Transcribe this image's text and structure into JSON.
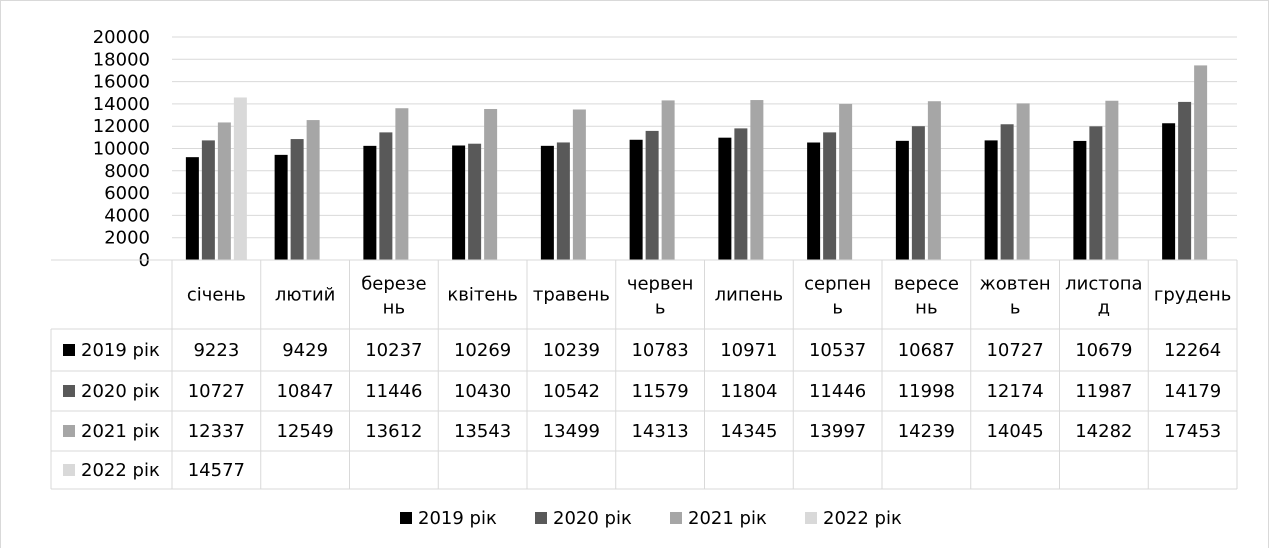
{
  "chart_data": {
    "type": "bar",
    "title": "",
    "xlabel": "",
    "ylabel": "",
    "ylim": [
      0,
      20000
    ],
    "yticks": [
      0,
      2000,
      4000,
      6000,
      8000,
      10000,
      12000,
      14000,
      16000,
      18000,
      20000
    ],
    "grid": true,
    "legend_position": "bottom",
    "categories": [
      [
        "січень"
      ],
      [
        "лютий"
      ],
      [
        "березе",
        "нь"
      ],
      [
        "квітень"
      ],
      [
        "травень"
      ],
      [
        "червен",
        "ь"
      ],
      [
        "липень"
      ],
      [
        "серпен",
        "ь"
      ],
      [
        "вересе",
        "нь"
      ],
      [
        "жовтен",
        "ь"
      ],
      [
        "листопа",
        "д"
      ],
      [
        "грудень"
      ]
    ],
    "series": [
      {
        "name": "2019 рік",
        "color": "#000000",
        "values": [
          9223,
          9429,
          10237,
          10269,
          10239,
          10783,
          10971,
          10537,
          10687,
          10727,
          10679,
          12264
        ]
      },
      {
        "name": "2020 рік",
        "color": "#595959",
        "values": [
          10727,
          10847,
          11446,
          10430,
          10542,
          11579,
          11804,
          11446,
          11998,
          12174,
          11987,
          14179
        ]
      },
      {
        "name": "2021 рік",
        "color": "#a6a6a6",
        "values": [
          12337,
          12549,
          13612,
          13543,
          13499,
          14313,
          14345,
          13997,
          14239,
          14045,
          14282,
          17453
        ]
      },
      {
        "name": "2022 рік",
        "color": "#d9d9d9",
        "values": [
          14577,
          null,
          null,
          null,
          null,
          null,
          null,
          null,
          null,
          null,
          null,
          null
        ]
      }
    ]
  }
}
